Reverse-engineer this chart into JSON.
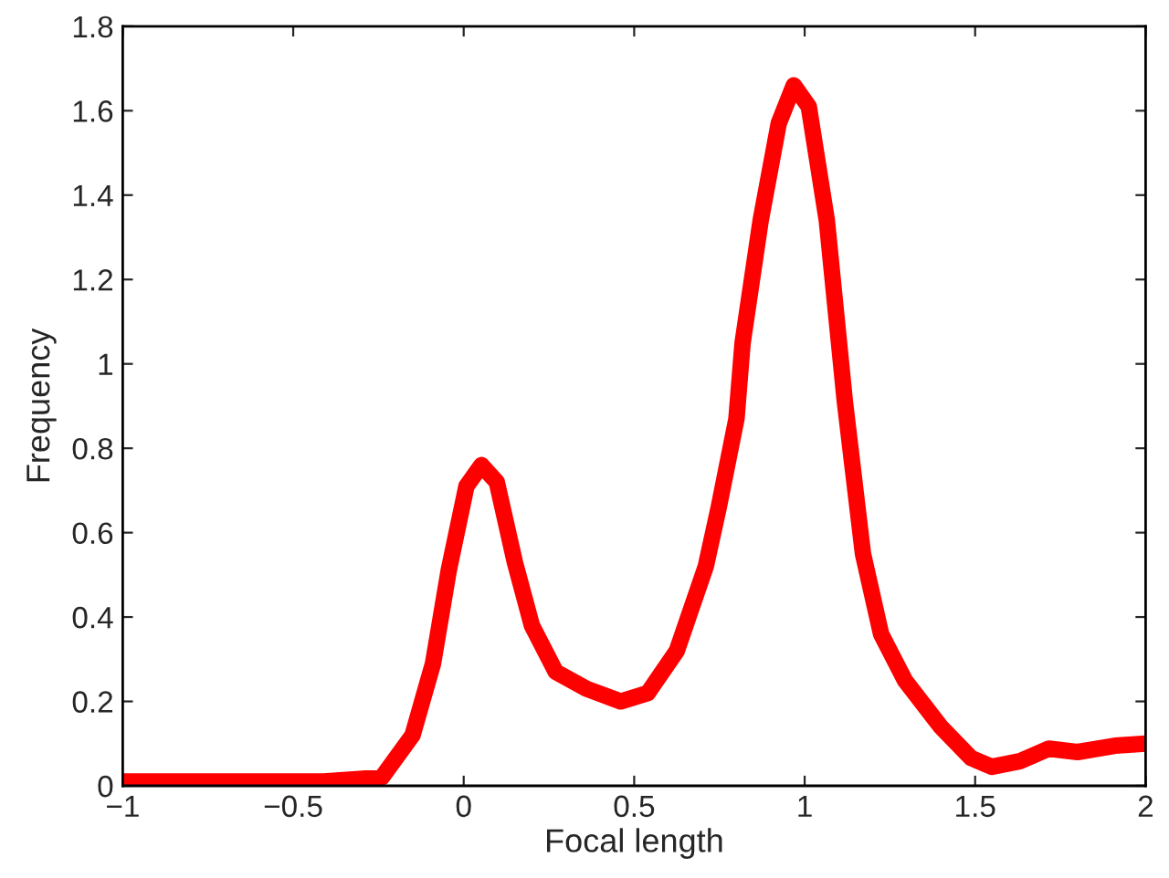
{
  "chart_data": {
    "type": "line",
    "xlabel": "Focal length",
    "ylabel": "Frequency",
    "x": [
      -1,
      -0.41,
      -0.24,
      -0.15,
      -0.09,
      -0.044,
      0.008,
      0.052,
      0.097,
      0.15,
      0.2,
      0.27,
      0.36,
      0.46,
      0.54,
      0.625,
      0.71,
      0.748,
      0.8,
      0.818,
      0.871,
      0.924,
      0.968,
      1.012,
      1.065,
      1.118,
      1.171,
      1.224,
      1.294,
      1.399,
      1.488,
      1.549,
      1.63,
      1.716,
      1.8,
      1.91,
      2.0
    ],
    "series": [
      {
        "color": "#ff0000",
        "values": [
          0.01,
          0.01,
          0.02,
          0.12,
          0.29,
          0.51,
          0.71,
          0.76,
          0.72,
          0.53,
          0.38,
          0.27,
          0.23,
          0.2,
          0.22,
          0.32,
          0.52,
          0.66,
          0.87,
          1.05,
          1.34,
          1.57,
          1.66,
          1.61,
          1.34,
          0.91,
          0.55,
          0.36,
          0.25,
          0.14,
          0.066,
          0.045,
          0.058,
          0.088,
          0.08,
          0.095,
          0.1
        ]
      }
    ],
    "xlim": [
      -1,
      2
    ],
    "ylim": [
      0,
      1.8
    ],
    "xticks": [
      -1,
      -0.5,
      0,
      0.5,
      1,
      1.5,
      2
    ],
    "yticks": [
      0,
      0.2,
      0.4,
      0.6,
      0.8,
      1,
      1.2,
      1.4,
      1.6,
      1.8
    ],
    "grid": false,
    "line_style": "solid",
    "marker": "none"
  }
}
